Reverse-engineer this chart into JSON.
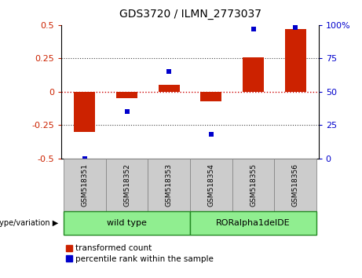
{
  "title": "GDS3720 / ILMN_2773037",
  "samples": [
    "GSM518351",
    "GSM518352",
    "GSM518353",
    "GSM518354",
    "GSM518355",
    "GSM518356"
  ],
  "red_bars": [
    -0.3,
    -0.05,
    0.05,
    -0.07,
    0.26,
    0.47
  ],
  "blue_dots_pct": [
    0.0,
    35.0,
    65.0,
    18.0,
    97.0,
    98.0
  ],
  "left_ylim": [
    -0.5,
    0.5
  ],
  "right_ylim": [
    0,
    100
  ],
  "left_yticks": [
    -0.5,
    -0.25,
    0.0,
    0.25,
    0.5
  ],
  "right_yticks": [
    0,
    25,
    50,
    75,
    100
  ],
  "right_yticklabels": [
    "0",
    "25",
    "50",
    "75",
    "100%"
  ],
  "groups": [
    {
      "label": "wild type",
      "indices": [
        0,
        1,
        2
      ],
      "color": "#90EE90"
    },
    {
      "label": "RORalpha1delDE",
      "indices": [
        3,
        4,
        5
      ],
      "color": "#90EE90"
    }
  ],
  "bar_color": "#CC2200",
  "dot_color": "#0000CC",
  "zero_line_color": "#CC0000",
  "hline_color": "#444444",
  "tick_color_left": "#CC2200",
  "tick_color_right": "#0000CC",
  "background_color": "#ffffff",
  "bar_width": 0.5,
  "legend_red": "transformed count",
  "legend_blue": "percentile rank within the sample",
  "sample_box_color": "#cccccc",
  "sample_box_edge": "#888888"
}
